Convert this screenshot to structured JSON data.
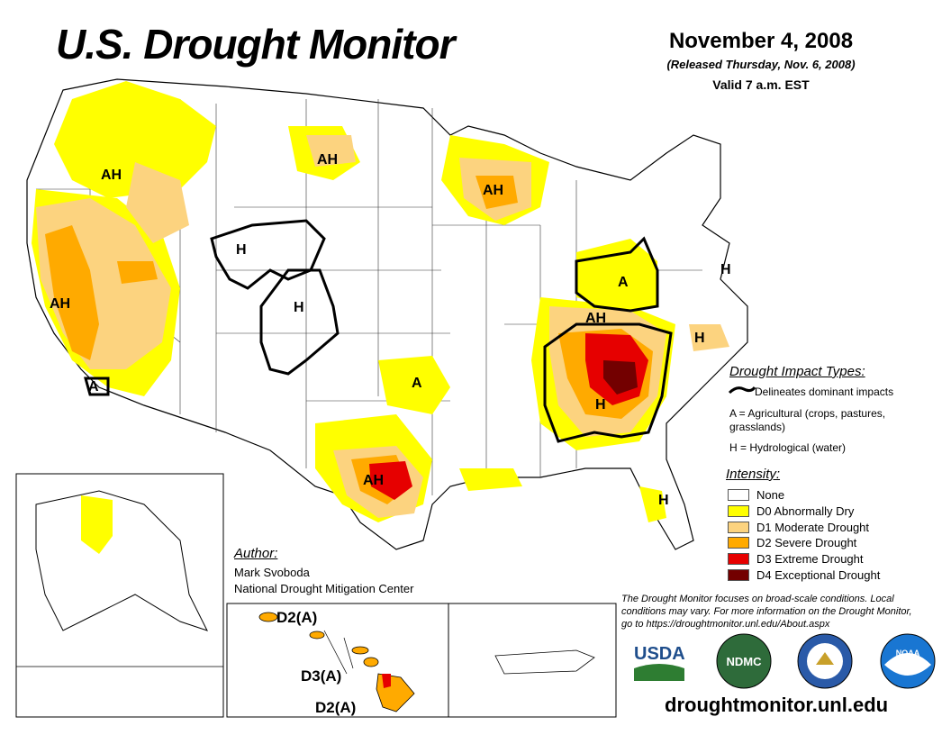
{
  "header": {
    "title": "U.S. Drought Monitor",
    "date": "November 4, 2008",
    "released": "(Released Thursday, Nov. 6, 2008)",
    "valid": "Valid 7 a.m. EST"
  },
  "map_labels": {
    "ah_nw": "AH",
    "ah_nd": "AH",
    "ah_wi": "AH",
    "ah_ca": "AH",
    "a_ca": "A",
    "h_wy": "H",
    "h_co": "H",
    "a_ok": "A",
    "ah_tx": "AH",
    "a_oh": "A",
    "ah_ky": "AH",
    "h_ga": "H",
    "h_nc": "H",
    "h_nj": "H",
    "h_fl": "H"
  },
  "hawaii_labels": {
    "kauai": "D2(A)",
    "maui": "D3(A)",
    "big_island": "D2(A)"
  },
  "impact_legend": {
    "title": "Drought Impact Types:",
    "delineates": "Delineates dominant impacts",
    "agricultural": "A = Agricultural (crops, pastures, grasslands)",
    "hydrological": "H = Hydrological (water)"
  },
  "intensity_legend": {
    "title": "Intensity:",
    "items": [
      {
        "label": "None",
        "color": "#ffffff"
      },
      {
        "label": "D0 Abnormally Dry",
        "color": "#ffff00"
      },
      {
        "label": "D1 Moderate Drought",
        "color": "#fcd37f"
      },
      {
        "label": "D2 Severe Drought",
        "color": "#ffaa00"
      },
      {
        "label": "D3 Extreme Drought",
        "color": "#e60000"
      },
      {
        "label": "D4 Exceptional Drought",
        "color": "#730000"
      }
    ]
  },
  "author": {
    "title": "Author:",
    "name": "Mark Svoboda",
    "org": "National Drought Mitigation Center"
  },
  "note": "The Drought Monitor focuses on broad-scale conditions. Local conditions may vary. For more information on the Drought Monitor, go to https://droughtmonitor.unl.edu/About.aspx",
  "logos": {
    "usda": "USDA",
    "ndmc": "NDMC",
    "noaa": "NOAA"
  },
  "footer_url": "droughtmonitor.unl.edu"
}
